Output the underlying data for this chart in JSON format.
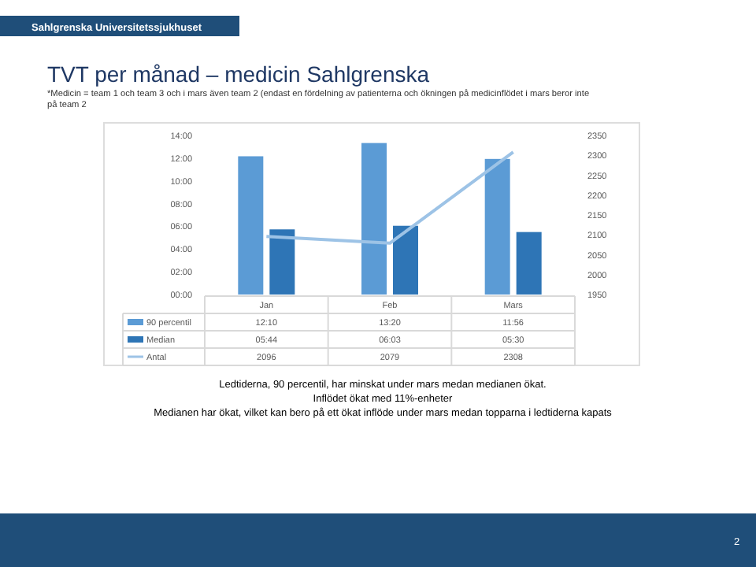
{
  "chart_data": {
    "type": "bar",
    "title": "TVT per månad – medicin Sahlgrenska",
    "subtitle": "*Medicin = team 1 och team 3 och i mars även team 2 (endast en fördelning av patienterna och ökningen på medicinflödet i mars beror inte på team 2",
    "categories": [
      "Jan",
      "Feb",
      "Mars"
    ],
    "series": [
      {
        "name": "90 percentil",
        "color": "#5b9bd5",
        "values": [
          12.1667,
          13.3333,
          11.9333
        ],
        "value_labels": [
          "12:10",
          "13:20",
          "11:56"
        ]
      },
      {
        "name": "Median",
        "color": "#2e75b6",
        "values": [
          5.7333,
          6.05,
          5.5
        ],
        "value_labels": [
          "05:44",
          "06:03",
          "05:30"
        ]
      },
      {
        "name": "Antal",
        "type": "line",
        "axis": "y2",
        "color": "#9dc3e6",
        "values": [
          2096,
          2079,
          2308
        ],
        "value_labels": [
          "2096",
          "2079",
          "2308"
        ]
      }
    ],
    "ylim": [
      0,
      14
    ],
    "yticks": [
      {
        "value": 0,
        "label": "00:00"
      },
      {
        "value": 2,
        "label": "02:00"
      },
      {
        "value": 4,
        "label": "04:00"
      },
      {
        "value": 6,
        "label": "06:00"
      },
      {
        "value": 8,
        "label": "08:00"
      },
      {
        "value": 10,
        "label": "10:00"
      },
      {
        "value": 12,
        "label": "12:00"
      },
      {
        "value": 14,
        "label": "14:00"
      }
    ],
    "y2lim": [
      1950,
      2350
    ],
    "y2ticks": [
      1950,
      2000,
      2050,
      2100,
      2150,
      2200,
      2250,
      2300,
      2350
    ],
    "legend": "bottom",
    "grid": false,
    "marker": "none",
    "line_style": "solid",
    "annotations": [
      "Sahlgrenska Universitetssjukhuset",
      "Ledtiderna, 90 percentil, har minskat under mars medan medianen ökat.",
      "Inflödet ökat med 11%-enheter",
      "Medianen har ökat, vilket kan bero på ett ökat inflöde under mars medan topparna i ledtiderna kapats",
      "2"
    ]
  }
}
